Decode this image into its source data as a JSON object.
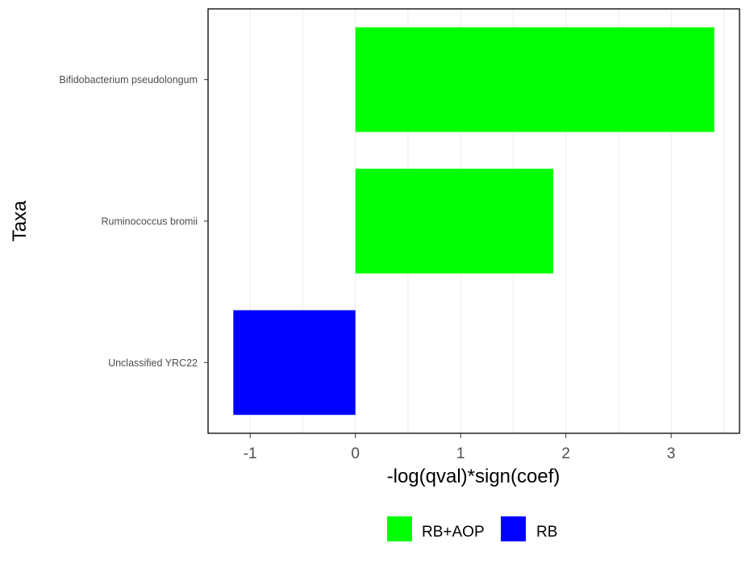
{
  "chart_data": {
    "type": "bar",
    "orientation": "horizontal",
    "categories": [
      "Bifidobacterium pseudolongum",
      "Ruminococcus bromii",
      "Unclassified  YRC22"
    ],
    "values": [
      3.41,
      1.88,
      -1.16
    ],
    "groups": [
      "RB+AOP",
      "RB+AOP",
      "RB"
    ],
    "xlabel": "-log(qval)*sign(coef)",
    "ylabel": "Taxa",
    "xlim": [
      -1.4,
      3.65
    ],
    "xticks": [
      -1,
      0,
      1,
      2,
      3
    ],
    "xtick_labels": [
      "-1",
      "0",
      "1",
      "2",
      "3"
    ],
    "grid": "vertical major and minor",
    "legend": {
      "position": "bottom",
      "entries": [
        {
          "label": "RB+AOP",
          "color": "#00ff00"
        },
        {
          "label": "RB",
          "color": "#0000ff"
        }
      ]
    }
  }
}
